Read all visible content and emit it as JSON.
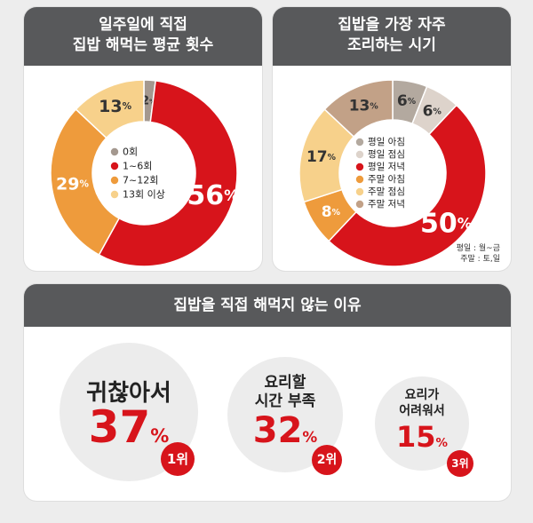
{
  "panel1": {
    "title_line1": "일주일에 직접",
    "title_line2": "집밥 해먹는 평균 횟수"
  },
  "panel2": {
    "title_line1": "집밥을 가장 자주",
    "title_line2": "조리하는 시기",
    "note_line1": "평일 : 월~금",
    "note_line2": "주말 : 토,일"
  },
  "panel3": {
    "title": "집밥을 직접 해먹지 않는 이유",
    "reasons": [
      {
        "label_line1": "귀찮아서",
        "label_line2": "",
        "value": "37",
        "unit": "%",
        "rank": "1위"
      },
      {
        "label_line1": "요리할",
        "label_line2": "시간 부족",
        "value": "32",
        "unit": "%",
        "rank": "2위"
      },
      {
        "label_line1": "요리가",
        "label_line2": "어려워서",
        "value": "15",
        "unit": "%",
        "rank": "3위"
      }
    ]
  },
  "chart_data": [
    {
      "type": "pie",
      "title": "일주일에 직접 집밥 해먹는 평균 횟수",
      "categories": [
        "0회",
        "1~6회",
        "7~12회",
        "13회 이상"
      ],
      "values": [
        2,
        56,
        29,
        13
      ],
      "colors": [
        "#a4988f",
        "#d7141b",
        "#ee9b3c",
        "#f7d18b"
      ],
      "legend": "center"
    },
    {
      "type": "pie",
      "title": "집밥을 가장 자주 조리하는 시기",
      "categories": [
        "평일 아침",
        "평일 점심",
        "평일 저녁",
        "주말 아침",
        "주말 점심",
        "주말 저녁"
      ],
      "values": [
        6,
        6,
        50,
        8,
        17,
        13
      ],
      "colors": [
        "#b3a99f",
        "#ddd3cb",
        "#d7141b",
        "#ee9b3c",
        "#f7d18b",
        "#c2a187"
      ],
      "legend": "center"
    }
  ]
}
